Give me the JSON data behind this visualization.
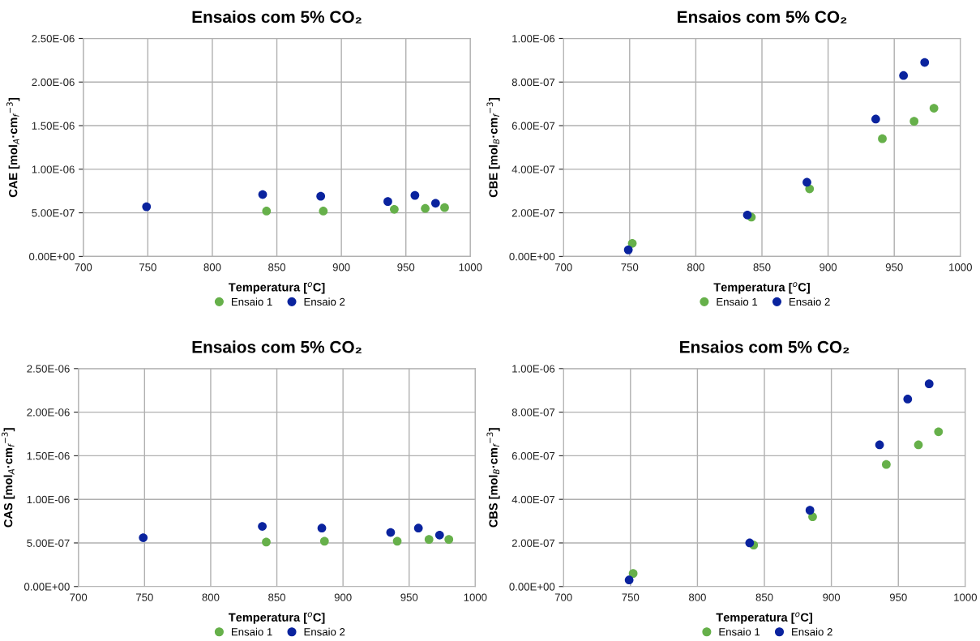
{
  "chart_data": [
    {
      "type": "scatter",
      "title": "Ensaios com 5% CO₂",
      "xlabel": "Temperatura [$^{o}$C]",
      "ylabel": "CAE [mol$_{A}$·cm$_{f}$$^{−3}$]",
      "xlim": [
        700,
        1000
      ],
      "xticks": [
        700,
        750,
        800,
        850,
        900,
        950,
        1000
      ],
      "ylim": [
        0,
        2.5e-06
      ],
      "yticks": [
        {
          "value": 0,
          "label": "0.00E+00"
        },
        {
          "value": 5e-07,
          "label": "5.00E-07"
        },
        {
          "value": 1e-06,
          "label": "1.00E-06"
        },
        {
          "value": 1.5e-06,
          "label": "1.50E-06"
        },
        {
          "value": 2e-06,
          "label": "2.00E-06"
        },
        {
          "value": 2.5e-06,
          "label": "2.50E-06"
        }
      ],
      "grid": true,
      "legend": "bottom",
      "marker": "circle",
      "series": [
        {
          "name": "Ensaio 1",
          "color": "#66b04a",
          "x": [
            842,
            886,
            941,
            965,
            980
          ],
          "values": [
            5.2e-07,
            5.2e-07,
            5.4e-07,
            5.5e-07,
            5.6e-07
          ]
        },
        {
          "name": "Ensaio 2",
          "color": "#0a239e",
          "x": [
            749,
            839,
            884,
            936,
            957,
            973
          ],
          "values": [
            5.7e-07,
            7.1e-07,
            6.9e-07,
            6.3e-07,
            7e-07,
            6.1e-07
          ]
        }
      ]
    },
    {
      "type": "scatter",
      "title": "Ensaios com 5% CO₂",
      "xlabel": "Temperatura [$^{o}$C]",
      "ylabel": "CBE [mol$_{B}$·cm$_{f}$$^{−3}$]",
      "xlim": [
        700,
        1000
      ],
      "xticks": [
        700,
        750,
        800,
        850,
        900,
        950,
        1000
      ],
      "ylim": [
        0,
        1e-06
      ],
      "yticks": [
        {
          "value": 0,
          "label": "0.00E+00"
        },
        {
          "value": 2e-07,
          "label": "2.00E-07"
        },
        {
          "value": 4e-07,
          "label": "4.00E-07"
        },
        {
          "value": 6e-07,
          "label": "6.00E-07"
        },
        {
          "value": 8e-07,
          "label": "8.00E-07"
        },
        {
          "value": 1e-06,
          "label": "1.00E-06"
        }
      ],
      "grid": true,
      "legend": "bottom",
      "marker": "circle",
      "series": [
        {
          "name": "Ensaio 1",
          "color": "#66b04a",
          "x": [
            752,
            842,
            886,
            941,
            965,
            980
          ],
          "values": [
            6e-08,
            1.8e-07,
            3.1e-07,
            5.4e-07,
            6.2e-07,
            6.8e-07
          ]
        },
        {
          "name": "Ensaio 2",
          "color": "#0a239e",
          "x": [
            749,
            839,
            884,
            936,
            957,
            973
          ],
          "values": [
            3e-08,
            1.9e-07,
            3.4e-07,
            6.3e-07,
            8.3e-07,
            8.9e-07
          ]
        }
      ]
    },
    {
      "type": "scatter",
      "title": "Ensaios com 5% CO₂",
      "xlabel": "Temperatura [$^{o}$C]",
      "ylabel": "CAS [mol$_{A}$·cm$_{f}$$^{−3}$]",
      "xlim": [
        700,
        1000
      ],
      "xticks": [
        700,
        750,
        800,
        850,
        900,
        950,
        1000
      ],
      "ylim": [
        0,
        2.5e-06
      ],
      "yticks": [
        {
          "value": 0,
          "label": "0.00E+00"
        },
        {
          "value": 5e-07,
          "label": "5.00E-07"
        },
        {
          "value": 1e-06,
          "label": "1.00E-06"
        },
        {
          "value": 1.5e-06,
          "label": "1.50E-06"
        },
        {
          "value": 2e-06,
          "label": "2.00E-06"
        },
        {
          "value": 2.5e-06,
          "label": "2.50E-06"
        }
      ],
      "grid": true,
      "legend": "bottom",
      "marker": "circle",
      "series": [
        {
          "name": "Ensaio 1",
          "color": "#66b04a",
          "x": [
            842,
            886,
            941,
            965,
            980
          ],
          "values": [
            5.1e-07,
            5.2e-07,
            5.2e-07,
            5.4e-07,
            5.4e-07
          ]
        },
        {
          "name": "Ensaio 2",
          "color": "#0a239e",
          "x": [
            749,
            839,
            884,
            936,
            957,
            973
          ],
          "values": [
            5.6e-07,
            6.9e-07,
            6.7e-07,
            6.2e-07,
            6.7e-07,
            5.9e-07
          ]
        }
      ]
    },
    {
      "type": "scatter",
      "title": "Ensaios com 5% CO₂",
      "xlabel": "Temperatura [$^{o}$C]",
      "ylabel": "CBS [mol$_{B}$·cm$_{f}$$^{−3}$]",
      "xlim": [
        700,
        1000
      ],
      "xticks": [
        700,
        750,
        800,
        850,
        900,
        950,
        1000
      ],
      "ylim": [
        0,
        1e-06
      ],
      "yticks": [
        {
          "value": 0,
          "label": "0.00E+00"
        },
        {
          "value": 2e-07,
          "label": "2.00E-07"
        },
        {
          "value": 4e-07,
          "label": "4.00E-07"
        },
        {
          "value": 6e-07,
          "label": "6.00E-07"
        },
        {
          "value": 8e-07,
          "label": "8.00E-07"
        },
        {
          "value": 1e-06,
          "label": "1.00E-06"
        }
      ],
      "grid": true,
      "legend": "bottom",
      "marker": "circle",
      "series": [
        {
          "name": "Ensaio 1",
          "color": "#66b04a",
          "x": [
            752,
            842,
            886,
            941,
            965,
            980
          ],
          "values": [
            6e-08,
            1.9e-07,
            3.2e-07,
            5.6e-07,
            6.5e-07,
            7.1e-07
          ]
        },
        {
          "name": "Ensaio 2",
          "color": "#0a239e",
          "x": [
            749,
            839,
            884,
            936,
            957,
            973
          ],
          "values": [
            3e-08,
            2e-07,
            3.5e-07,
            6.5e-07,
            8.6e-07,
            9.3e-07
          ]
        }
      ]
    }
  ]
}
